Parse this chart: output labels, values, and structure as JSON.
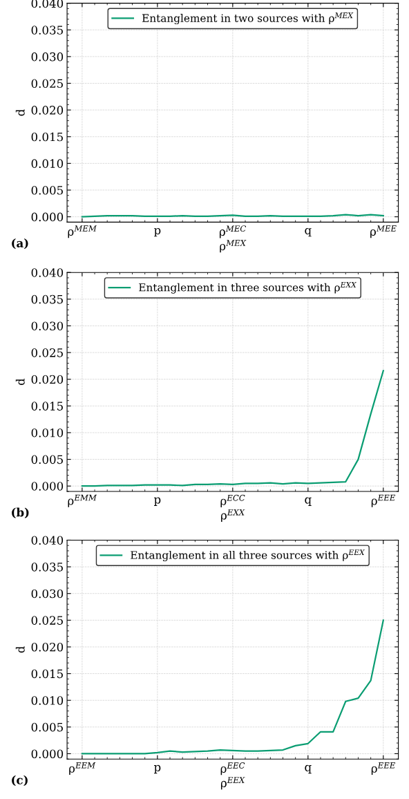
{
  "chart_data": [
    {
      "type": "line",
      "categories": [
        "ρ$^{MEM}$",
        null,
        null,
        null,
        null,
        null,
        "p",
        null,
        null,
        null,
        null,
        null,
        "ρ$^{MEC}$",
        null,
        null,
        null,
        null,
        null,
        "q",
        null,
        null,
        null,
        null,
        null,
        "ρ$^{MEE}$"
      ],
      "series": [
        {
          "name": "Entanglement in two sources with ρ$^{MEX}$",
          "color": "#0a9d72",
          "values": [
            0,
            0.0001,
            0.0002,
            0.0002,
            0.0002,
            0.0001,
            0.0001,
            0.0001,
            0.0002,
            0.0001,
            0.0001,
            0.0002,
            0.0003,
            0.0001,
            0.0001,
            0.0002,
            0.0001,
            0.0001,
            0.0001,
            0.0001,
            0.0002,
            0.0004,
            0.0002,
            0.0004,
            0.0002
          ]
        }
      ],
      "ylim": [
        -0.001,
        0.04
      ],
      "yticks": [
        {
          "value": 0,
          "label": "0.000"
        },
        {
          "value": 0.005,
          "label": "0.005"
        },
        {
          "value": 0.01,
          "label": "0.010"
        },
        {
          "value": 0.015,
          "label": "0.015"
        },
        {
          "value": 0.02,
          "label": "0.020"
        },
        {
          "value": 0.025,
          "label": "0.025"
        },
        {
          "value": 0.03,
          "label": "0.030"
        },
        {
          "value": 0.035,
          "label": "0.035"
        },
        {
          "value": 0.04,
          "label": "0.040"
        }
      ],
      "xlabel": "ρ$^{MEX}$",
      "ylabel": "d",
      "annotations": [
        "(a)"
      ],
      "grid": true,
      "legend": "top",
      "marker": "none",
      "line_style": "solid"
    },
    {
      "type": "line",
      "categories": [
        "ρ$^{EMM}$",
        null,
        null,
        null,
        null,
        null,
        "p",
        null,
        null,
        null,
        null,
        null,
        "ρ$^{ECC}$",
        null,
        null,
        null,
        null,
        null,
        "q",
        null,
        null,
        null,
        null,
        null,
        "ρ$^{EEE}$"
      ],
      "series": [
        {
          "name": "Entanglement in three sources with ρ$^{EXX}$",
          "color": "#0a9d72",
          "values": [
            0,
            0,
            0.0001,
            0.0001,
            0.0001,
            0.0002,
            0.0002,
            0.0002,
            0.0001,
            0.0003,
            0.0003,
            0.0004,
            0.0003,
            0.0005,
            0.0005,
            0.0006,
            0.0004,
            0.0006,
            0.0005,
            0.0006,
            0.0007,
            0.0008,
            0.005,
            0.0135,
            0.0216
          ]
        }
      ],
      "ylim": [
        -0.001,
        0.04
      ],
      "yticks": [
        {
          "value": 0,
          "label": "0.000"
        },
        {
          "value": 0.005,
          "label": "0.005"
        },
        {
          "value": 0.01,
          "label": "0.010"
        },
        {
          "value": 0.015,
          "label": "0.015"
        },
        {
          "value": 0.02,
          "label": "0.020"
        },
        {
          "value": 0.025,
          "label": "0.025"
        },
        {
          "value": 0.03,
          "label": "0.030"
        },
        {
          "value": 0.035,
          "label": "0.035"
        },
        {
          "value": 0.04,
          "label": "0.040"
        }
      ],
      "xlabel": "ρ$^{EXX}$",
      "ylabel": "d",
      "annotations": [
        "(b)"
      ],
      "grid": true,
      "legend": "top",
      "marker": "none",
      "line_style": "solid"
    },
    {
      "type": "line",
      "categories": [
        "ρ$^{EEM}$",
        null,
        null,
        null,
        null,
        null,
        "p",
        null,
        null,
        null,
        null,
        null,
        "ρ$^{EEC}$",
        null,
        null,
        null,
        null,
        null,
        "q",
        null,
        null,
        null,
        null,
        null,
        "ρ$^{EEE}$"
      ],
      "series": [
        {
          "name": "Entanglement in all three sources with ρ$^{EEX}$",
          "color": "#0a9d72",
          "values": [
            0,
            0,
            0,
            0,
            0,
            0,
            0.0002,
            0.0005,
            0.0003,
            0.0004,
            0.0005,
            0.0007,
            0.0006,
            0.0005,
            0.0005,
            0.0006,
            0.0007,
            0.0015,
            0.0019,
            0.0041,
            0.0041,
            0.0098,
            0.0104,
            0.0137,
            0.025
          ]
        }
      ],
      "ylim": [
        -0.001,
        0.04
      ],
      "yticks": [
        {
          "value": 0,
          "label": "0.000"
        },
        {
          "value": 0.005,
          "label": "0.005"
        },
        {
          "value": 0.01,
          "label": "0.010"
        },
        {
          "value": 0.015,
          "label": "0.015"
        },
        {
          "value": 0.02,
          "label": "0.020"
        },
        {
          "value": 0.025,
          "label": "0.025"
        },
        {
          "value": 0.03,
          "label": "0.030"
        },
        {
          "value": 0.035,
          "label": "0.035"
        },
        {
          "value": 0.04,
          "label": "0.040"
        }
      ],
      "xlabel": "ρ$^{EEX}$",
      "ylabel": "d",
      "annotations": [
        "(c)"
      ],
      "grid": true,
      "legend": "top",
      "marker": "none",
      "line_style": "solid"
    }
  ]
}
